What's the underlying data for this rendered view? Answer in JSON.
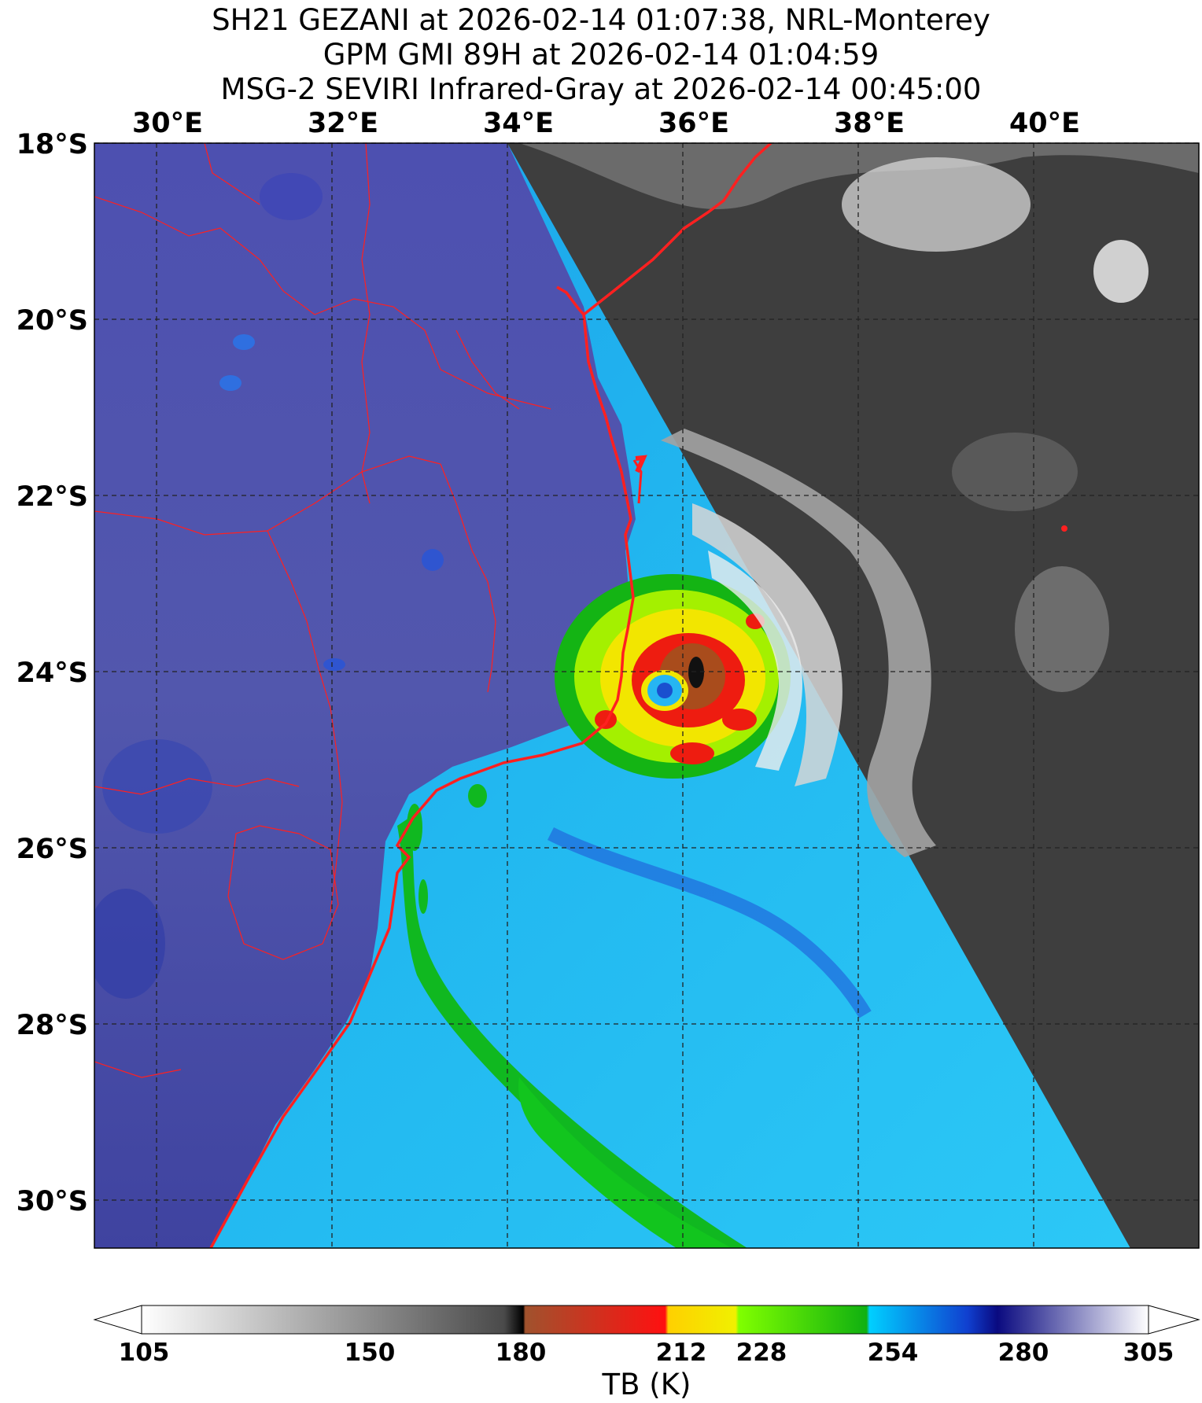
{
  "titles": [
    "SH21 GEZANI at 2026-02-14 01:07:38, NRL-Monterey",
    "GPM GMI 89H at 2026-02-14 01:04:59",
    "MSG-2 SEVIRI Infrared-Gray at 2026-02-14 00:45:00"
  ],
  "map": {
    "lon_labels": [
      "30°E",
      "32°E",
      "34°E",
      "36°E",
      "38°E",
      "40°E"
    ],
    "lat_labels": [
      "18°S",
      "20°S",
      "22°S",
      "24°S",
      "26°S",
      "28°S",
      "30°S"
    ],
    "lon_range": [
      29.3,
      41.9
    ],
    "lat_range": [
      -18.0,
      -30.5
    ],
    "grid": true,
    "storm_center": {
      "lon": 35.8,
      "lat": -24.2
    },
    "colors": {
      "land_ir": "#4a4fa6",
      "ocean_ir": "#1fb4ee",
      "border": "#ff2020",
      "seviri_gray": "#3f3f3f"
    }
  },
  "colorbar": {
    "tick_labels": [
      "105",
      "150",
      "180",
      "212",
      "228",
      "254",
      "280",
      "305"
    ],
    "range": [
      105,
      305
    ],
    "unit_label": "TB (K)"
  }
}
